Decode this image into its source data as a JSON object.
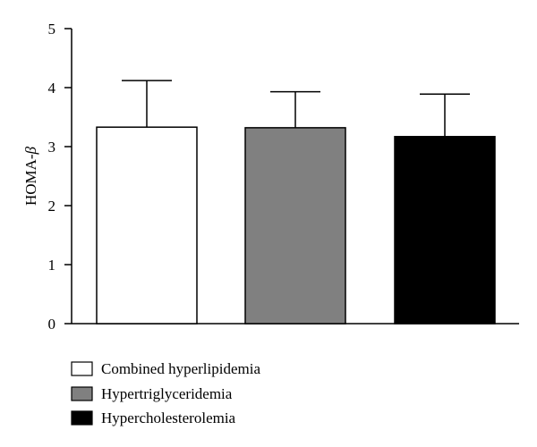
{
  "chart_data": {
    "type": "bar",
    "categories": [
      "Combined hyperlipidemia",
      "Hypertriglyceridemia",
      "Hypercholesterolemia"
    ],
    "values": [
      3.33,
      3.32,
      3.17
    ],
    "errors": [
      0.79,
      0.61,
      0.72
    ],
    "colors": [
      "#ffffff",
      "#808080",
      "#000000"
    ],
    "ylabel": "HOMA-",
    "ylabel_symbol": "β",
    "ylim": [
      0,
      5
    ],
    "yticks": [
      "0",
      "1",
      "2",
      "3",
      "4",
      "5"
    ],
    "grid": false,
    "legend_position": "bottom-left"
  }
}
